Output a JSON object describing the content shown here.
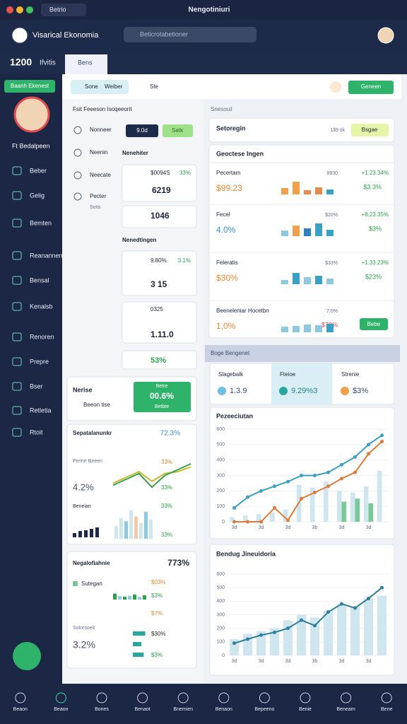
{
  "window": {
    "tab": "Betrio",
    "title": "Nengotiniuri"
  },
  "header": {
    "brand": "Visarical Ekonomia",
    "search": "Beticrotabetioner"
  },
  "subbar": {
    "count": "1200",
    "label": "Ifvitis",
    "tab": "Bens"
  },
  "sidebar": {
    "button": "Baanh Ekenest",
    "user": "Ft Bedalpeen",
    "items": [
      "Beber",
      "Gelig",
      "Bemten",
      "Reanannen",
      "Bensal",
      "Kenalsb",
      "Renoren",
      "Prepre",
      "Bser",
      "Retletia",
      "Rtoit"
    ]
  },
  "toolbar": {
    "chip": "Sone",
    "chip_label": "Weiber",
    "item": "Ste",
    "action": "Geneen"
  },
  "middle": {
    "heading": "Fsit Feeeson Isoqeeorit",
    "list": [
      {
        "label": "Nonneer"
      },
      {
        "label": "Neenin"
      },
      {
        "label": "Neecate"
      },
      {
        "label": "Pecter",
        "sub": "Sotis"
      }
    ],
    "badges": [
      "9.0d",
      "Setk"
    ],
    "groups": [
      {
        "title": "Nenehiter",
        "cards": [
          {
            "code": "$0094S",
            "pct": "33%",
            "value": "6219"
          },
          {
            "value": "1046"
          }
        ]
      },
      {
        "title": "Nenedtingen",
        "cards": [
          {
            "code": "9.80%",
            "pct": "3.1%",
            "value": "3 15"
          },
          {
            "code": "0325",
            "value": "1.11.0"
          }
        ]
      }
    ],
    "select": "53%",
    "notice": {
      "title": "Nerise",
      "sub": "Beeon tise",
      "cta_top": "Betre",
      "cta": "00.6%",
      "cta_sub": "Betbte"
    },
    "trend": {
      "title": "Sepatalanunkr",
      "value": "72.3%",
      "label": "Fenne Beeen",
      "stat": "4.2%",
      "pct1": "33%",
      "pct2": "33%",
      "sub": "Beneian",
      "pct3": "33%",
      "pct4": "33%",
      "ylim": [
        0,
        100
      ],
      "series": [
        {
          "color": "#c9b832",
          "values": [
            30,
            45,
            60,
            35,
            55,
            60,
            72
          ]
        },
        {
          "color": "#3aa04a",
          "values": [
            25,
            40,
            55,
            20,
            50,
            65,
            80
          ]
        }
      ],
      "bars": {
        "values": [
          40,
          65,
          55,
          90,
          70,
          50,
          85,
          60
        ],
        "colors": [
          "#cfe6ef",
          "#cfe6ef",
          "#8ec9e0",
          "#cfe6ef",
          "#f0c9a8",
          "#cfe6ef",
          "#8ec9e0",
          "#cfe6ef"
        ]
      },
      "dark_bars": [
        30,
        45,
        50,
        60,
        70
      ]
    },
    "ledger": {
      "title": "Negalofiahnie",
      "value": "773%",
      "item": "Sutegan",
      "pct1": "$03%",
      "pct2": "$3%",
      "pct3": "$7%",
      "stat_label": "Solorsoeit",
      "stat": "3.2%",
      "pct4": "$30%",
      "pct5": "$3%",
      "bars": [
        70,
        40,
        35,
        45,
        60,
        30,
        50
      ],
      "hbars": [
        80,
        55,
        70
      ],
      "xlim": [
        0,
        100
      ]
    }
  },
  "right": {
    "label": "Snesouil",
    "summary": {
      "title": "Setoregin",
      "meta": "1$9 tik",
      "action": "Bsgae"
    },
    "panel": {
      "title": "Geoctese Ingen",
      "ylim": [
        0,
        100
      ],
      "rows": [
        {
          "name": "Pecertam",
          "value": "$99.23",
          "meta": "8930",
          "change": "+1.23.34%",
          "pct": "$3.3%",
          "bars": [
            45,
            90,
            30,
            50,
            35
          ],
          "colors": [
            "#f0a04b",
            "#f0a04b",
            "#e8884a",
            "#e8884a",
            "#3aa0c4"
          ]
        },
        {
          "name": "Fecel",
          "value": "4.0%",
          "meta": "$20%",
          "change": "+8.23.35%",
          "pct": "$3%",
          "bars": [
            40,
            75,
            55,
            90,
            45
          ],
          "colors": [
            "#8ec9e0",
            "#f0a04b",
            "#2f7fc1",
            "#3aa0c4",
            "#3aa0c4"
          ]
        },
        {
          "name": "Feleratis",
          "value": "$30%",
          "meta": "$33%",
          "change": "+1.33.23%",
          "pct": "$23%",
          "bars": [
            30,
            80,
            50,
            60,
            40
          ],
          "colors": [
            "#8ec9e0",
            "#3aa0c4",
            "#8ec9e0",
            "#3aa0c4",
            "#8ec9e0"
          ]
        },
        {
          "name": "Beeneleniar Hocetbn",
          "value": "1,0%",
          "meta": "7.0%",
          "pct": "$78%",
          "action": "Bebe",
          "bars": [
            40,
            45,
            55,
            50,
            60
          ],
          "colors": [
            "#8ec9e0",
            "#8ec9e0",
            "#8ec9e0",
            "#8ec9e0",
            "#3aa0c4"
          ]
        }
      ]
    },
    "section": "Boge Bengenet",
    "tabs": [
      {
        "label": "Slagebalk",
        "value": "1.3.9",
        "color": "#6ec0e0"
      },
      {
        "label": "Fteioe",
        "value": "9.29%3",
        "color": "#2aa6a0"
      },
      {
        "label": "Strenie",
        "value": "$3%",
        "color": "#f0a04b"
      }
    ],
    "charts": [
      {
        "type": "bar-line",
        "title": "Pezeeciutan",
        "categories": [
          "3d",
          null,
          "3d",
          null,
          "3d",
          null,
          "3b",
          null,
          "3d",
          null,
          "3d",
          null
        ],
        "ylim": [
          0,
          600
        ],
        "yticks": [
          0,
          100,
          200,
          300,
          400,
          500,
          600
        ],
        "series": [
          {
            "kind": "bar",
            "color": "#cfe6ef",
            "values": [
              30,
              40,
              50,
              60,
              80,
              240,
              220,
              260,
              200,
              190,
              230,
              330
            ]
          },
          {
            "kind": "bar",
            "color": "#7cc79a",
            "values": [
              null,
              null,
              null,
              null,
              null,
              null,
              null,
              null,
              130,
              150,
              120,
              null
            ]
          },
          {
            "kind": "line",
            "color": "#3b9fc4",
            "values": [
              90,
              160,
              200,
              230,
              260,
              300,
              300,
              320,
              370,
              420,
              500,
              560
            ]
          },
          {
            "kind": "line",
            "color": "#e07a3a",
            "values": [
              0,
              0,
              0,
              90,
              10,
              150,
              190,
              230,
              280,
              320,
              440,
              520
            ]
          }
        ]
      },
      {
        "type": "bar-line",
        "title": "Bendug Jineuidoria",
        "categories": [
          "3d",
          null,
          "3d",
          null,
          "3d",
          null,
          "3b",
          null,
          "3d",
          null,
          "3d",
          null
        ],
        "ylim": [
          0,
          600
        ],
        "yticks": [
          0,
          100,
          200,
          300,
          400,
          500,
          600
        ],
        "series": [
          {
            "kind": "bar",
            "color": "#cfe6ef",
            "values": [
              120,
              160,
              180,
              200,
              260,
              300,
              280,
              330,
              380,
              360,
              420,
              440
            ]
          },
          {
            "kind": "line",
            "color": "#2f7f9c",
            "values": [
              90,
              120,
              150,
              170,
              200,
              260,
              220,
              320,
              380,
              350,
              420,
              500
            ]
          }
        ]
      }
    ]
  },
  "bottom_nav": [
    "Beaon",
    "Beaon",
    "Bones",
    "Benaot",
    "Bnemien",
    "Benaon",
    "Bepeeno",
    "Benie",
    "Benearn",
    "Bene"
  ]
}
